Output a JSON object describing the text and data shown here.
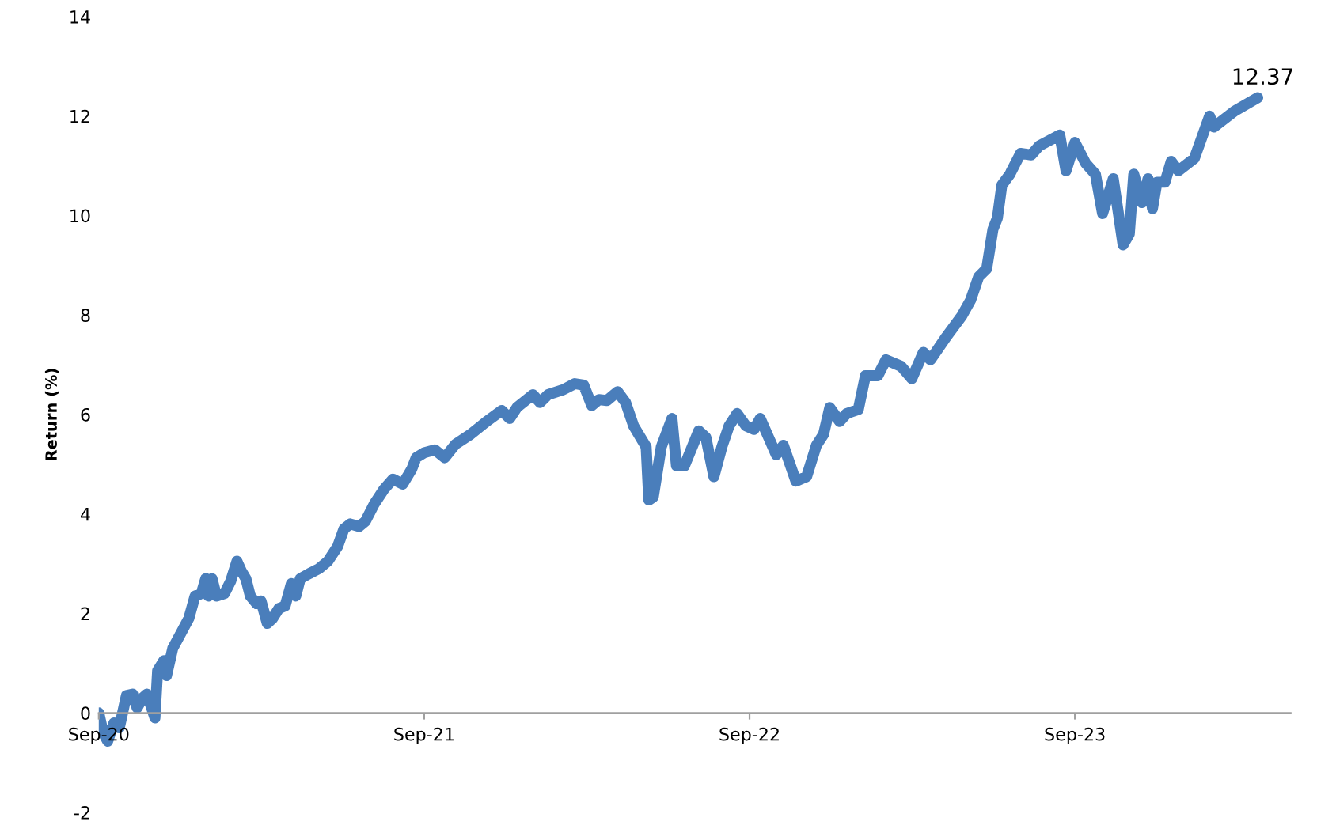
{
  "chart_data": {
    "type": "line",
    "ylabel": "Return (%)",
    "x": [
      "2020-09-01",
      "2020-09-06",
      "2020-09-11",
      "2020-09-18",
      "2020-09-24",
      "2020-10-02",
      "2020-10-09",
      "2020-10-14",
      "2020-10-20",
      "2020-10-25",
      "2020-11-03",
      "2020-11-06",
      "2020-11-13",
      "2020-11-16",
      "2020-11-23",
      "2020-12-02",
      "2020-12-11",
      "2020-12-18",
      "2020-12-25",
      "2020-12-30",
      "2021-01-02",
      "2021-01-06",
      "2021-01-11",
      "2021-01-20",
      "2021-01-27",
      "2021-02-03",
      "2021-02-08",
      "2021-02-13",
      "2021-02-18",
      "2021-02-25",
      "2021-03-02",
      "2021-03-09",
      "2021-03-15",
      "2021-03-22",
      "2021-03-29",
      "2021-04-05",
      "2021-04-10",
      "2021-04-15",
      "2021-04-25",
      "2021-05-06",
      "2021-05-16",
      "2021-05-27",
      "2021-06-03",
      "2021-06-10",
      "2021-06-20",
      "2021-06-27",
      "2021-07-07",
      "2021-07-18",
      "2021-07-28",
      "2021-08-08",
      "2021-08-18",
      "2021-08-23",
      "2021-09-01",
      "2021-09-13",
      "2021-09-24",
      "2021-10-06",
      "2021-10-23",
      "2021-11-10",
      "2021-11-27",
      "2021-12-06",
      "2021-12-14",
      "2022-01-01",
      "2022-01-09",
      "2022-01-18",
      "2022-02-04",
      "2022-02-17",
      "2022-02-27",
      "2022-03-08",
      "2022-03-16",
      "2022-03-25",
      "2022-04-06",
      "2022-04-15",
      "2022-04-24",
      "2022-05-08",
      "2022-05-11",
      "2022-05-16",
      "2022-05-25",
      "2022-06-06",
      "2022-06-11",
      "2022-06-20",
      "2022-07-06",
      "2022-07-14",
      "2022-07-23",
      "2022-08-01",
      "2022-08-09",
      "2022-08-18",
      "2022-08-28",
      "2022-09-06",
      "2022-09-13",
      "2022-10-01",
      "2022-10-09",
      "2022-10-23",
      "2022-11-04",
      "2022-11-15",
      "2022-11-23",
      "2022-11-30",
      "2022-12-11",
      "2022-12-19",
      "2023-01-01",
      "2023-01-09",
      "2023-01-23",
      "2023-02-01",
      "2023-02-18",
      "2023-03-02",
      "2023-03-15",
      "2023-03-23",
      "2023-04-10",
      "2023-04-27",
      "2023-05-07",
      "2023-05-16",
      "2023-05-25",
      "2023-06-01",
      "2023-06-06",
      "2023-06-11",
      "2023-06-20",
      "2023-07-02",
      "2023-07-14",
      "2023-07-23",
      "2023-08-15",
      "2023-08-22",
      "2023-09-01",
      "2023-09-13",
      "2023-09-24",
      "2023-10-02",
      "2023-10-14",
      "2023-10-25",
      "2023-11-01",
      "2023-11-06",
      "2023-11-15",
      "2023-11-22",
      "2023-11-27",
      "2023-12-02",
      "2023-12-11",
      "2023-12-18",
      "2023-12-26",
      "2024-01-13",
      "2024-01-30",
      "2024-02-04",
      "2024-02-27",
      "2024-03-24"
    ],
    "series": [
      {
        "color": "#4a7ebb",
        "values": [
          0,
          -0.4,
          -0.57,
          -0.2,
          -0.3,
          0.35,
          0.38,
          0.1,
          0.3,
          0.38,
          -0.1,
          0.85,
          1.05,
          0.75,
          1.3,
          1.6,
          1.9,
          2.35,
          2.4,
          2.7,
          2.35,
          2.7,
          2.35,
          2.4,
          2.65,
          3.05,
          2.85,
          2.7,
          2.35,
          2.2,
          2.25,
          1.8,
          1.9,
          2.1,
          2.15,
          2.6,
          2.35,
          2.7,
          2.8,
          2.9,
          3.05,
          3.35,
          3.7,
          3.8,
          3.75,
          3.85,
          4.2,
          4.5,
          4.7,
          4.6,
          4.9,
          5.13,
          5.23,
          5.29,
          5.13,
          5.4,
          5.6,
          5.86,
          6.08,
          5.92,
          6.14,
          6.4,
          6.24,
          6.4,
          6.5,
          6.62,
          6.59,
          6.18,
          6.3,
          6.28,
          6.46,
          6.24,
          5.77,
          5.35,
          4.28,
          4.34,
          5.35,
          5.92,
          4.97,
          4.97,
          5.67,
          5.54,
          4.75,
          5.35,
          5.77,
          6.02,
          5.77,
          5.7,
          5.92,
          5.19,
          5.38,
          4.66,
          4.75,
          5.38,
          5.6,
          6.14,
          5.86,
          6.02,
          6.1,
          6.78,
          6.78,
          7.1,
          6.97,
          6.72,
          7.25,
          7.1,
          7.57,
          7.98,
          8.3,
          8.77,
          8.93,
          9.72,
          9.95,
          10.61,
          10.83,
          11.25,
          11.22,
          11.4,
          11.62,
          10.9,
          11.47,
          11.05,
          10.83,
          10.04,
          10.74,
          9.41,
          9.63,
          10.83,
          10.26,
          10.74,
          10.14,
          10.67,
          10.67,
          11.09,
          10.9,
          11.15,
          12.0,
          11.78,
          12.1,
          12.37
        ]
      }
    ],
    "annotations": [
      {
        "text": "12.37",
        "x": "2024-03-24",
        "y": 12.37
      }
    ],
    "xlim": [
      "2020-09-01",
      "2024-04-30"
    ],
    "xticks": [
      {
        "value": "2020-09-01",
        "label": "Sep-20"
      },
      {
        "value": "2021-09-01",
        "label": "Sep-21"
      },
      {
        "value": "2022-09-01",
        "label": "Sep-22"
      },
      {
        "value": "2023-09-01",
        "label": "Sep-23"
      }
    ],
    "ylim": [
      -2,
      14
    ],
    "yticks": [
      -2,
      0,
      2,
      4,
      6,
      8,
      10,
      12,
      14
    ],
    "grid": false,
    "marker": "none",
    "line_style": "solid"
  }
}
